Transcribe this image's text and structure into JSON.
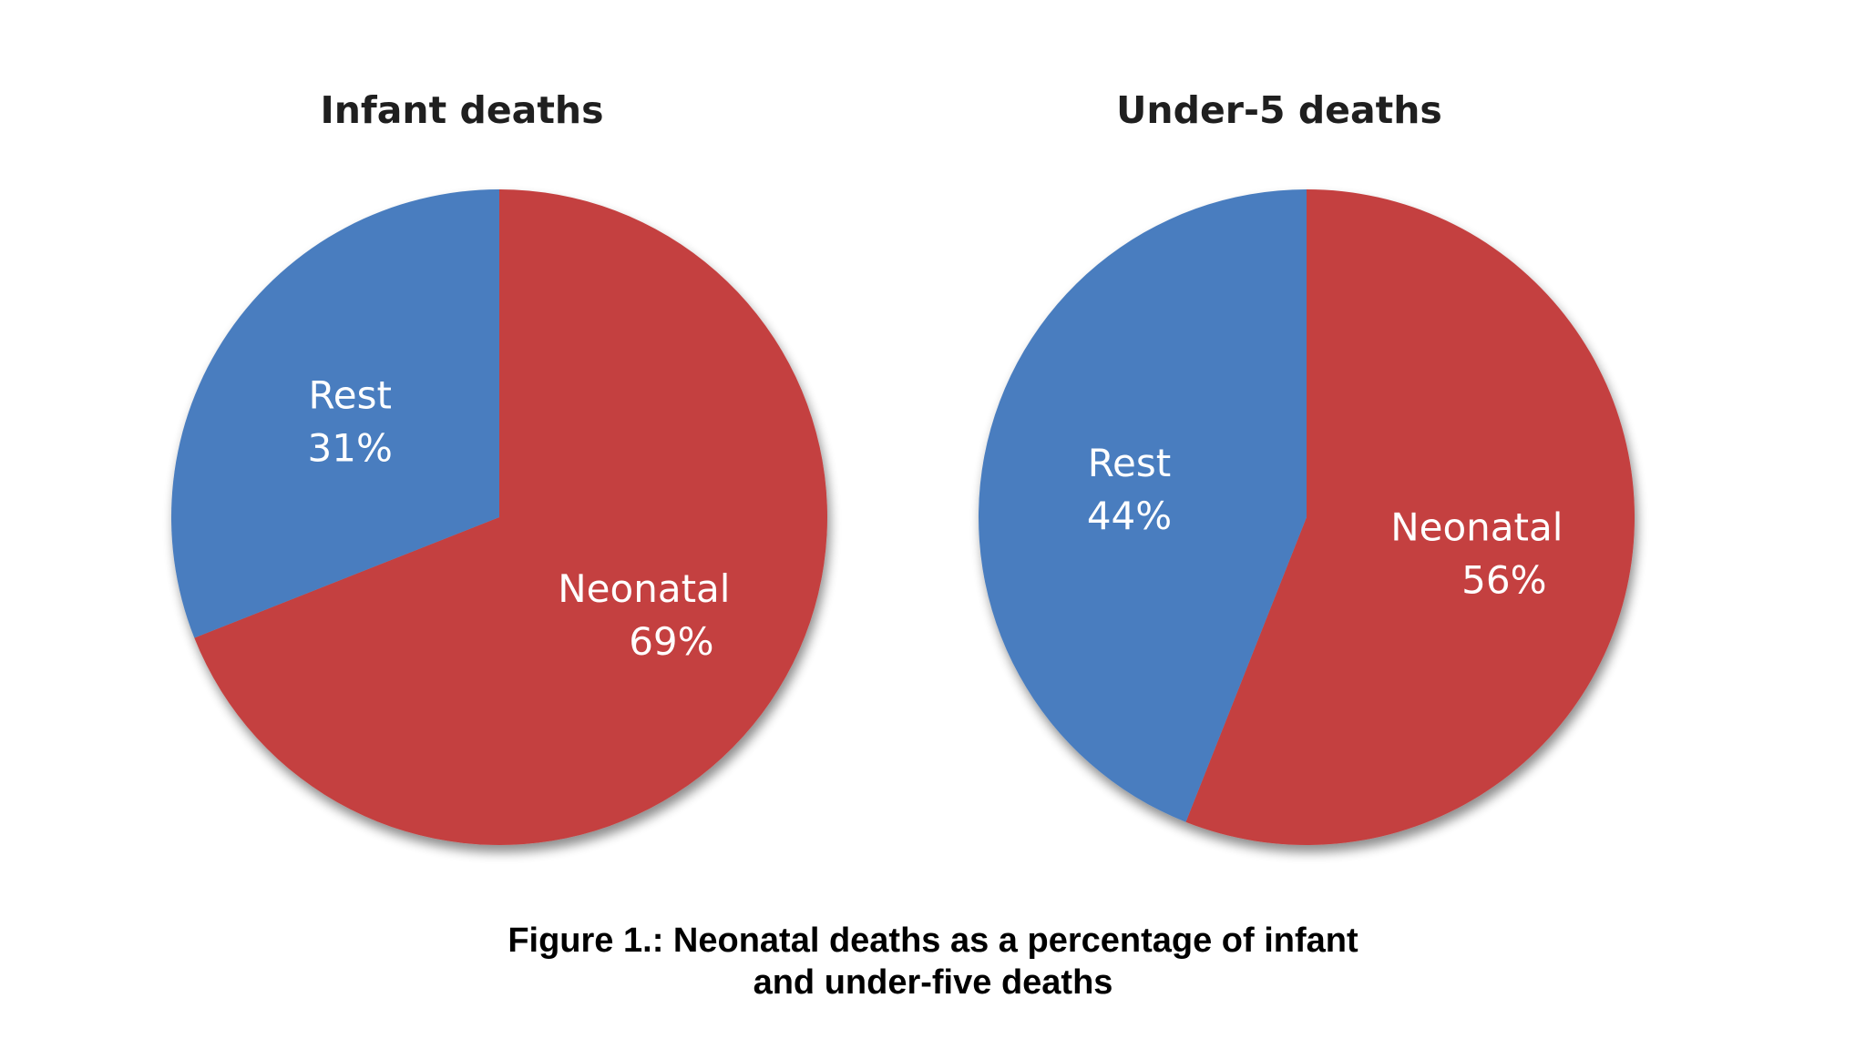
{
  "caption": {
    "line1": "Figure 1.: Neonatal deaths as a percentage of infant",
    "line2": "and under-five deaths"
  },
  "colors": {
    "neonatal": "#c4403f",
    "rest": "#4a7dbf"
  },
  "chart_data": [
    {
      "type": "pie",
      "title": "Infant deaths",
      "slices": [
        {
          "name": "Rest",
          "value": 31,
          "value_label": "31%",
          "color": "#4a7dbf"
        },
        {
          "name": "Neonatal",
          "value": 69,
          "value_label": "69%",
          "color": "#c4403f"
        }
      ]
    },
    {
      "type": "pie",
      "title": "Under-5 deaths",
      "slices": [
        {
          "name": "Rest",
          "value": 44,
          "value_label": "44%",
          "color": "#4a7dbf"
        },
        {
          "name": "Neonatal",
          "value": 56,
          "value_label": "56%",
          "color": "#c4403f"
        }
      ]
    }
  ]
}
